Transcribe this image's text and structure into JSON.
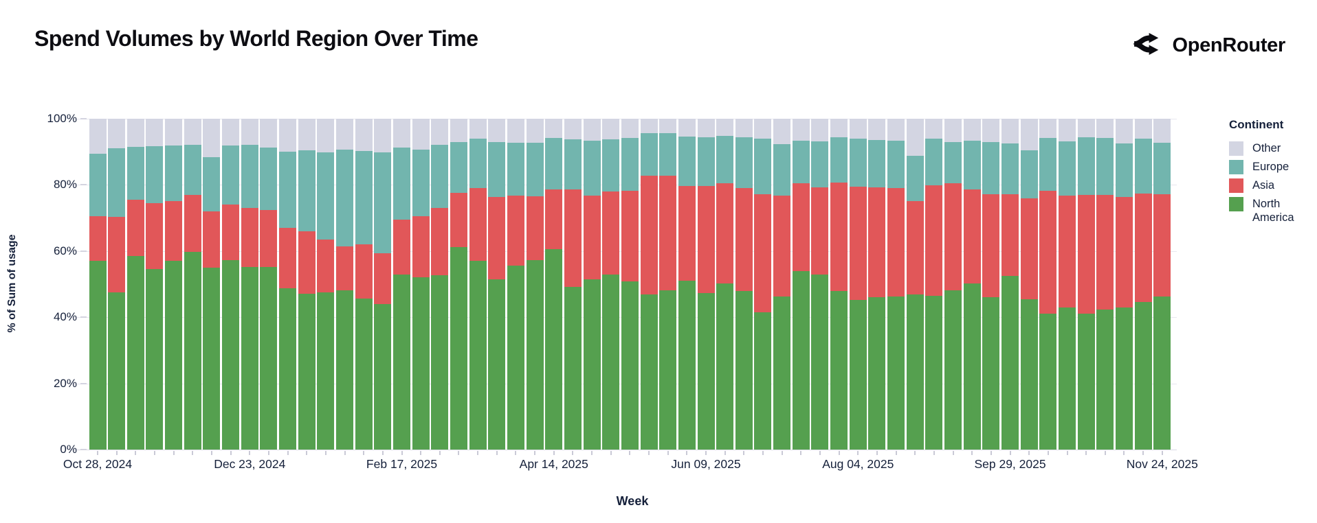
{
  "header": {
    "title": "Spend Volumes by World Region Over Time",
    "brand": "OpenRouter"
  },
  "chart_data": {
    "type": "bar",
    "stacked": true,
    "normalized_percent": true,
    "title": "Spend Volumes by World Region Over Time",
    "xlabel": "Week",
    "ylabel": "% of Sum of usage",
    "ylim": [
      0,
      100
    ],
    "y_tick_labels": [
      "0%",
      "20%",
      "40%",
      "60%",
      "80%",
      "100%"
    ],
    "y_tick_values": [
      0,
      20,
      40,
      60,
      80,
      100
    ],
    "n_bars": 57,
    "x_tick_labels": [
      "Oct 28, 2024",
      "Dec 23, 2024",
      "Feb 17, 2025",
      "Apr 14, 2025",
      "Jun 09, 2025",
      "Aug 04, 2025",
      "Sep 29, 2025",
      "Nov 24, 2025"
    ],
    "x_tick_bar_indices": [
      1,
      9,
      17,
      25,
      33,
      41,
      49,
      57
    ],
    "grid": true,
    "legend": {
      "title": "Continent",
      "position": "right",
      "entries": [
        {
          "label": "Other",
          "color": "#d3d5e2"
        },
        {
          "label": "Europe",
          "color": "#72b5ae"
        },
        {
          "label": "Asia",
          "color": "#e15759"
        },
        {
          "label": "North America",
          "color": "#55a04f"
        }
      ]
    },
    "series": [
      {
        "name": "North America",
        "color": "#55a04f",
        "values": [
          57.1,
          47.6,
          58.5,
          54.5,
          57.0,
          59.8,
          55.0,
          57.3,
          55.2,
          55.1,
          48.8,
          47.0,
          47.5,
          48.2,
          45.7,
          43.9,
          53.0,
          52.0,
          52.7,
          61.3,
          57.1,
          51.5,
          55.5,
          57.2,
          60.6,
          49.1,
          51.5,
          52.9,
          50.9,
          46.9,
          48.1,
          51.0,
          47.2,
          50.3,
          48.0,
          41.5,
          46.2,
          54.0,
          53.0,
          48.0,
          45.3,
          46.0,
          46.2,
          46.9,
          46.4,
          48.1,
          50.3,
          46.0,
          52.4,
          45.5,
          41.0,
          42.9,
          41.1,
          42.4,
          42.9,
          44.6,
          46.2
        ]
      },
      {
        "name": "Asia",
        "color": "#e15759",
        "values": [
          13.4,
          22.7,
          17.0,
          19.9,
          18.2,
          17.2,
          17.0,
          16.7,
          17.8,
          17.4,
          18.2,
          18.9,
          15.9,
          13.2,
          16.3,
          15.5,
          16.6,
          18.6,
          20.3,
          16.2,
          21.9,
          24.9,
          21.3,
          19.4,
          18.1,
          29.5,
          25.3,
          25.1,
          27.4,
          35.8,
          34.7,
          28.7,
          32.4,
          30.1,
          31.1,
          35.7,
          30.6,
          26.4,
          26.2,
          32.8,
          34.1,
          33.2,
          32.8,
          28.3,
          33.5,
          32.3,
          28.4,
          31.1,
          24.7,
          30.4,
          37.2,
          33.9,
          35.8,
          34.5,
          33.4,
          32.7,
          30.9
        ]
      },
      {
        "name": "Europe",
        "color": "#72b5ae",
        "values": [
          18.9,
          20.7,
          16.0,
          17.2,
          16.8,
          15.2,
          16.3,
          17.9,
          19.2,
          18.8,
          23.1,
          24.5,
          26.5,
          29.2,
          28.2,
          30.5,
          21.7,
          20.0,
          19.2,
          15.5,
          14.9,
          16.6,
          16.0,
          16.1,
          15.4,
          15.1,
          16.6,
          15.7,
          15.8,
          13.0,
          12.9,
          14.9,
          14.8,
          14.4,
          15.3,
          16.8,
          15.5,
          13.0,
          14.0,
          13.5,
          14.5,
          14.4,
          14.4,
          13.6,
          14.0,
          12.6,
          14.7,
          15.9,
          15.4,
          14.5,
          15.9,
          16.4,
          17.4,
          17.2,
          16.2,
          16.6,
          15.6
        ]
      },
      {
        "name": "Other",
        "color": "#d3d5e2",
        "values": [
          10.6,
          9.0,
          8.5,
          8.4,
          8.0,
          7.8,
          11.7,
          8.1,
          7.8,
          8.7,
          9.9,
          9.6,
          10.1,
          9.4,
          9.8,
          10.1,
          8.7,
          9.4,
          7.8,
          7.0,
          6.1,
          7.0,
          7.2,
          7.3,
          5.9,
          6.3,
          6.6,
          6.3,
          5.9,
          4.3,
          4.3,
          5.4,
          5.6,
          5.2,
          5.6,
          6.0,
          7.7,
          6.6,
          6.8,
          5.7,
          6.1,
          6.4,
          6.6,
          11.2,
          6.1,
          7.0,
          6.6,
          7.0,
          7.5,
          9.6,
          5.9,
          6.8,
          5.7,
          5.9,
          7.5,
          6.1,
          7.3
        ]
      }
    ]
  }
}
